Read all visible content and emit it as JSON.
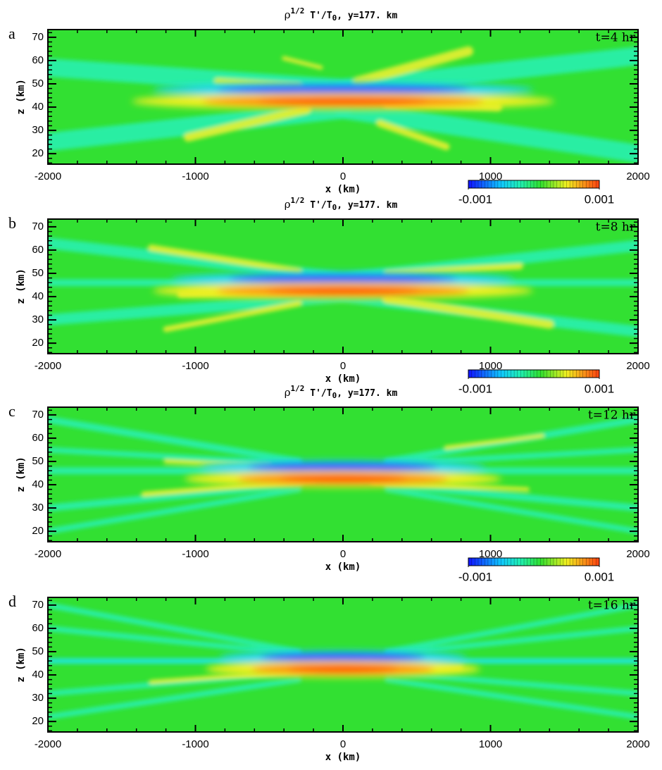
{
  "chart_data": [
    {
      "type": "heatmap",
      "panel": "a",
      "title_parts": [
        "ρ",
        "1/2",
        " T'/T",
        "0",
        ", y=177. km"
      ],
      "annotation": "t=4 hr",
      "x_label": "x (km)",
      "y_label": "z (km)",
      "xlim": [
        -2000,
        2000
      ],
      "xticks": [
        -2000,
        -1000,
        0,
        1000,
        2000
      ],
      "ylim": [
        15.5,
        73.3
      ],
      "yticks": [
        20,
        30,
        40,
        50,
        60,
        70
      ],
      "colorbar": {
        "range": [
          -0.001,
          0.001
        ],
        "ticks": [
          -0.001,
          0.001
        ]
      }
    },
    {
      "type": "heatmap",
      "panel": "b",
      "title_parts": [
        "ρ",
        "1/2",
        " T'/T",
        "0",
        ", y=177. km"
      ],
      "annotation": "t=8 hr",
      "x_label": "x (km)",
      "y_label": "z (km)",
      "xlim": [
        -2000,
        2000
      ],
      "xticks": [
        -2000,
        -1000,
        0,
        1000,
        2000
      ],
      "ylim": [
        15.5,
        73.3
      ],
      "yticks": [
        20,
        30,
        40,
        50,
        60,
        70
      ],
      "colorbar": {
        "range": [
          -0.001,
          0.001
        ],
        "ticks": [
          -0.001,
          0.001
        ]
      }
    },
    {
      "type": "heatmap",
      "panel": "c",
      "title_parts": [
        "ρ",
        "1/2",
        " T'/T",
        "0",
        ", y=177. km"
      ],
      "annotation": "t=12 hr",
      "x_label": "x (km)",
      "y_label": "z (km)",
      "xlim": [
        -2000,
        2000
      ],
      "xticks": [
        -2000,
        -1000,
        0,
        1000,
        2000
      ],
      "ylim": [
        15.5,
        73.3
      ],
      "yticks": [
        20,
        30,
        40,
        50,
        60,
        70
      ],
      "colorbar": {
        "range": [
          -0.001,
          0.001
        ],
        "ticks": [
          -0.001,
          0.001
        ]
      }
    },
    {
      "type": "heatmap",
      "panel": "d",
      "annotation": "t=16 hr",
      "x_label": "x (km)",
      "y_label": "z (km)",
      "xlim": [
        -2000,
        2000
      ],
      "xticks": [
        -2000,
        -1000,
        0,
        1000,
        2000
      ],
      "ylim": [
        15.5,
        73.3
      ],
      "yticks": [
        20,
        30,
        40,
        50,
        60,
        70
      ]
    }
  ]
}
